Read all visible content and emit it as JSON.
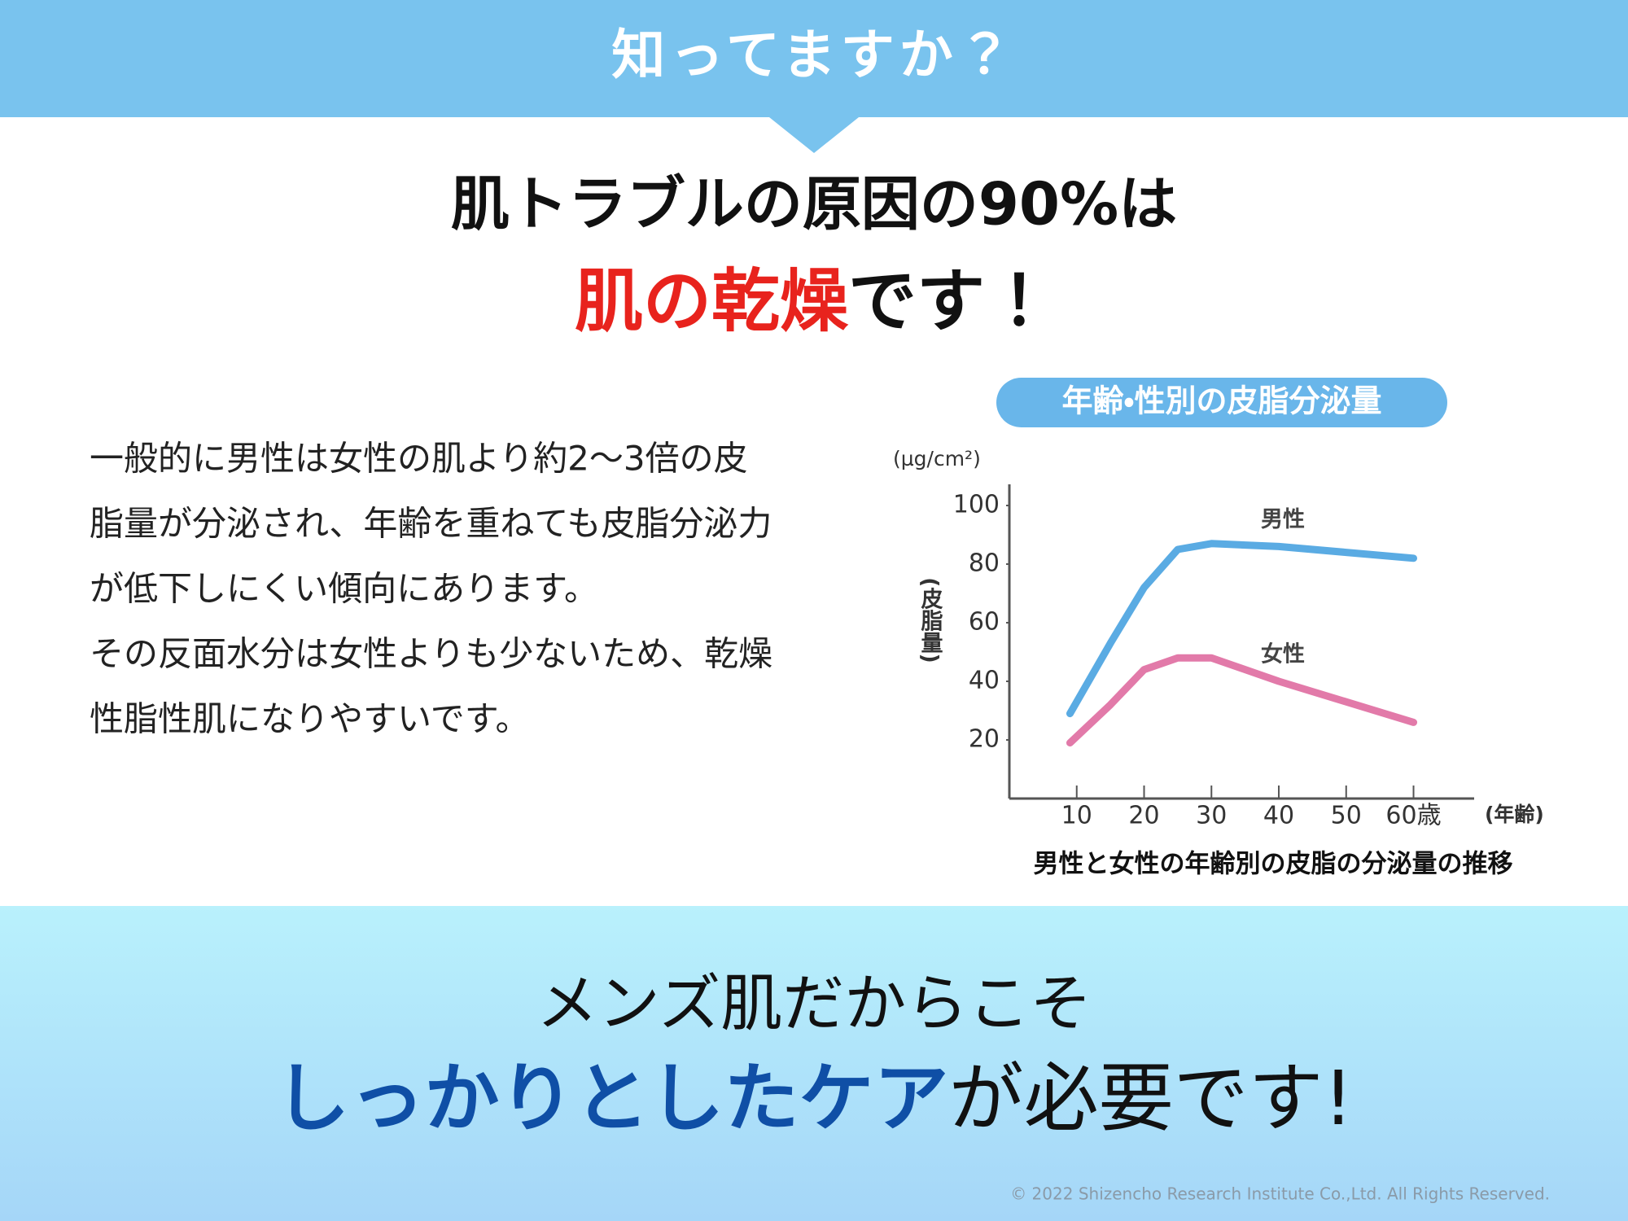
{
  "header": {
    "title": "知ってますか？"
  },
  "headline": {
    "line1": "肌トラブルの原因の90%は",
    "emphasis": "肌の乾燥",
    "rest": "です！"
  },
  "body": {
    "lines": [
      "一般的に男性は女性の肌より約2～3倍の皮",
      "脂量が分泌され、年齢を重ねても皮脂分泌力",
      "が低下しにくい傾向にあります。",
      "その反面水分は女性よりも少ないため、乾燥",
      "性脂性肌になりやすいです。"
    ]
  },
  "chart_data": {
    "type": "line",
    "title": "年齢・性別の皮脂分泌量",
    "caption": "男性と女性の年齢別の皮脂の分泌量の推移",
    "y_unit": "(µg/cm²)",
    "ylabel": "(皮脂量)",
    "xlabel": "(年齢)",
    "x": [
      9,
      15,
      20,
      25,
      30,
      40,
      50,
      60
    ],
    "series": [
      {
        "name": "男性",
        "color": "#5aabe3",
        "values": [
          29,
          53,
          72,
          85,
          87,
          86,
          84,
          82
        ]
      },
      {
        "name": "女性",
        "color": "#e27aa9",
        "values": [
          19,
          32,
          44,
          48,
          48,
          40,
          33,
          26
        ]
      }
    ],
    "xlim": [
      0,
      69
    ],
    "xticks": [
      10,
      20,
      30,
      40,
      50,
      {
        "value": 60,
        "label": "60歳"
      }
    ],
    "ylim": [
      0,
      105
    ],
    "yticks": [
      20,
      40,
      60,
      80,
      100
    ]
  },
  "footer": {
    "line1": "メンズ肌だからこそ",
    "emphasis": "しっかりとしたケア",
    "rest": "が必要です!",
    "copyright": "© 2022 Shizencho Research Institute Co.,Ltd.  All Rights Reserved."
  }
}
